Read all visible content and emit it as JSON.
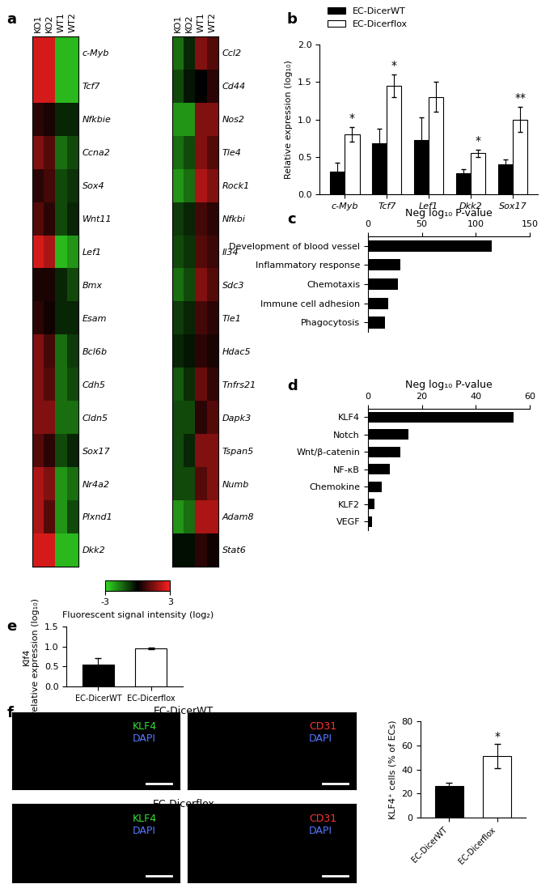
{
  "chart_data": [
    {
      "type": "heatmap",
      "panel": "a",
      "columns": [
        "KO1",
        "KO2",
        "WT1",
        "WT2"
      ],
      "heatmaps": [
        {
          "rows": [
            "c-Myb",
            "Tcf7",
            "Nfkbie",
            "Ccna2",
            "Sox4",
            "Wnt11",
            "Lef1",
            "Bmx",
            "Esam",
            "Bcl6b",
            "Cdh5",
            "Cldn5",
            "Sox17",
            "Nr4a2",
            "Plxnd1",
            "Dkk2"
          ],
          "cells": [
            [
              2.5,
              2.5,
              -2.5,
              -2.5
            ],
            [
              2.5,
              2.5,
              -2.5,
              -2.5
            ],
            [
              0.5,
              0.3,
              -0.5,
              -0.5
            ],
            [
              1.5,
              1.0,
              -1.5,
              -1.0
            ],
            [
              0.5,
              0.8,
              -1.0,
              -0.7
            ],
            [
              1.0,
              0.5,
              -1.0,
              -0.5
            ],
            [
              2.5,
              2.0,
              -2.5,
              -2.0
            ],
            [
              0.3,
              0.3,
              -0.5,
              -1.0
            ],
            [
              0.5,
              0.2,
              -0.5,
              -0.5
            ],
            [
              1.5,
              0.8,
              -1.5,
              -0.8
            ],
            [
              1.5,
              1.0,
              -1.5,
              -1.0
            ],
            [
              1.5,
              1.5,
              -1.5,
              -1.5
            ],
            [
              1.0,
              0.5,
              -1.0,
              -0.5
            ],
            [
              2.0,
              1.5,
              -2.0,
              -1.5
            ],
            [
              2.0,
              1.0,
              -2.0,
              -1.0
            ],
            [
              2.5,
              2.5,
              -2.5,
              -2.5
            ]
          ]
        },
        {
          "rows": [
            "Ccl2",
            "Cd44",
            "Nos2",
            "Tle4",
            "Rock1",
            "Nfkbi",
            "Il34",
            "Sdc3",
            "Tle1",
            "Hdac5",
            "Tnfrs21",
            "Dapk3",
            "Tspan5",
            "Numb",
            "Adam8",
            "Stat6"
          ],
          "cells": [
            [
              -1.5,
              -0.5,
              1.5,
              1.0
            ],
            [
              -1.0,
              -0.3,
              0.0,
              0.5
            ],
            [
              -2.0,
              -2.0,
              1.5,
              1.5
            ],
            [
              -1.5,
              -1.0,
              1.5,
              1.0
            ],
            [
              -2.0,
              -1.5,
              2.0,
              1.5
            ],
            [
              -0.8,
              -0.5,
              0.8,
              0.5
            ],
            [
              -1.0,
              -0.7,
              1.0,
              0.7
            ],
            [
              -1.5,
              -1.0,
              1.5,
              1.0
            ],
            [
              -0.8,
              -0.5,
              0.8,
              0.5
            ],
            [
              -0.5,
              -0.3,
              0.5,
              0.3
            ],
            [
              -1.2,
              -0.6,
              1.2,
              0.6
            ],
            [
              -1.0,
              -1.0,
              0.5,
              1.0
            ],
            [
              -1.0,
              -0.5,
              1.5,
              1.5
            ],
            [
              -1.0,
              -1.0,
              1.0,
              1.5
            ],
            [
              -2.0,
              -1.5,
              2.0,
              2.0
            ],
            [
              -0.2,
              -0.2,
              0.5,
              0.2
            ]
          ]
        }
      ],
      "colorbar": {
        "range": [
          -3,
          3
        ],
        "ticks": [
          -3,
          3
        ],
        "label": "Fluorescent signal intensity (log₂)"
      }
    },
    {
      "type": "bar",
      "panel": "b",
      "categories": [
        "c-Myb",
        "Tcf7",
        "Lef1",
        "Dkk2",
        "Sox17"
      ],
      "series": [
        {
          "name": "EC-DicerWT",
          "color": "#000000",
          "values": [
            0.3,
            0.68,
            0.73,
            0.28,
            0.4
          ],
          "errors": [
            0.12,
            0.2,
            0.3,
            0.06,
            0.07
          ],
          "annotations": [
            null,
            null,
            null,
            null,
            null
          ]
        },
        {
          "name": "EC-Dicerflox",
          "color": "#ffffff",
          "values": [
            0.8,
            1.45,
            1.3,
            0.55,
            1.0
          ],
          "errors": [
            0.1,
            0.15,
            0.2,
            0.05,
            0.17
          ],
          "annotations": [
            "*",
            "*",
            null,
            "*",
            "**"
          ]
        }
      ],
      "ylabel": "Relative expression (log₁₀)",
      "ylim": [
        0,
        2
      ],
      "yticks": [
        {
          "value": 0,
          "label": "0.0"
        },
        {
          "value": 0.5,
          "label": "0.5"
        },
        {
          "value": 1,
          "label": "1.0"
        },
        {
          "value": 1.5,
          "label": "1.5"
        },
        {
          "value": 2,
          "label": "2.0"
        }
      ],
      "legend": "upper left"
    },
    {
      "type": "bar",
      "panel": "c",
      "orientation": "horizontal",
      "xlabel": "Neg log₁₀ P-value",
      "categories": [
        "Development of blood vessel",
        "Inflammatory response",
        "Chemotaxis",
        "Immune cell adhesion",
        "Phagocytosis"
      ],
      "values": [
        115,
        30,
        28,
        19,
        16
      ],
      "color": "#000000",
      "xlim": [
        0,
        150
      ],
      "xticks": [
        0,
        50,
        100,
        150
      ]
    },
    {
      "type": "bar",
      "panel": "d",
      "orientation": "horizontal",
      "xlabel": "Neg log₁₀ P-value",
      "categories": [
        "KLF4",
        "Notch",
        "Wnt/β-catenin",
        "NF-κB",
        "Chemokine",
        "KLF2",
        "VEGF"
      ],
      "values": [
        54,
        15,
        12,
        8,
        5,
        2.5,
        1.5
      ],
      "color": "#000000",
      "xlim": [
        0,
        60
      ],
      "xticks": [
        0,
        20,
        40,
        60
      ]
    },
    {
      "type": "bar",
      "panel": "e",
      "categories": [
        "EC-DicerWT",
        "EC-Dicerflox"
      ],
      "values": [
        0.55,
        0.96
      ],
      "errors": [
        0.17,
        0.02
      ],
      "colors": [
        "#000000",
        "#ffffff"
      ],
      "ylabel": "Klf4\nrelative expression (log₁₀)",
      "ylim": [
        0,
        1.5
      ],
      "yticks": [
        {
          "value": 0,
          "label": "0.0"
        },
        {
          "value": 0.5,
          "label": "0.5"
        },
        {
          "value": 1,
          "label": "1.0"
        },
        {
          "value": 1.5,
          "label": "1.5"
        }
      ]
    },
    {
      "type": "bar",
      "panel": "f",
      "images": {
        "rows": [
          {
            "title": "EC-DicerWT",
            "panels": [
              {
                "labels": [
                  "KLF4",
                  "DAPI"
                ],
                "colors": [
                  "#33dd33",
                  "#5577ff"
                ]
              },
              {
                "labels": [
                  "CD31",
                  "DAPI"
                ],
                "colors": [
                  "#ff3333",
                  "#5577ff"
                ]
              }
            ]
          },
          {
            "title": "EC-Dicerflox",
            "panels": [
              {
                "labels": [
                  "KLF4",
                  "DAPI"
                ],
                "colors": [
                  "#33dd33",
                  "#5577ff"
                ]
              },
              {
                "labels": [
                  "CD31",
                  "DAPI"
                ],
                "colors": [
                  "#ff3333",
                  "#5577ff"
                ]
              }
            ]
          }
        ]
      },
      "categories": [
        "EC-DicerWT",
        "EC-Dicerflox"
      ],
      "values": [
        26,
        51
      ],
      "errors": [
        3,
        10
      ],
      "colors": [
        "#000000",
        "#ffffff"
      ],
      "annotations": [
        null,
        "*"
      ],
      "ylabel": "KLF4⁺ cells (% of ECs)",
      "ylim": [
        0,
        80
      ],
      "yticks": [
        0,
        20,
        40,
        60,
        80
      ]
    }
  ]
}
